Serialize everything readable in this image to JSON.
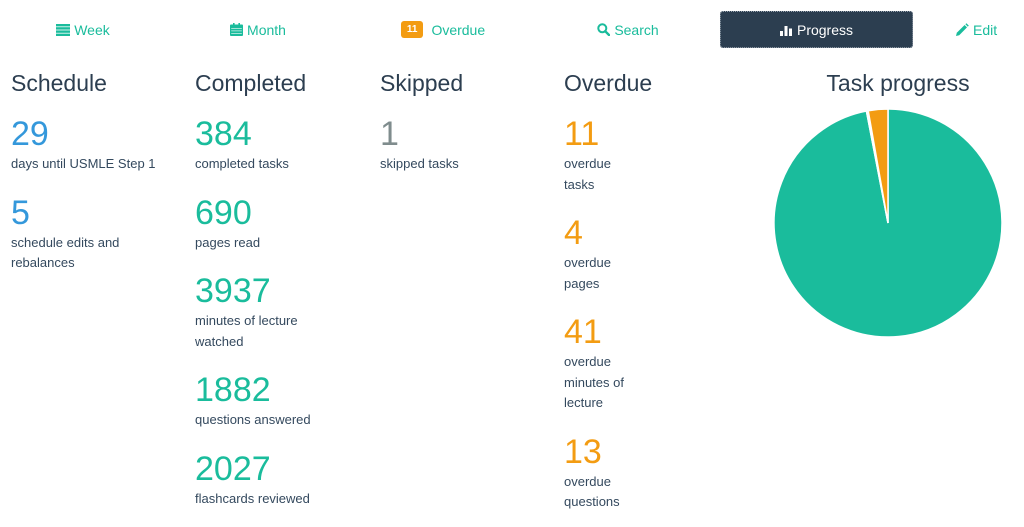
{
  "nav": {
    "week": {
      "label": "Week",
      "icon": "list-icon"
    },
    "month": {
      "label": "Month",
      "icon": "calendar-icon"
    },
    "overdue": {
      "label": "Overdue",
      "badge": "11"
    },
    "search": {
      "label": "Search",
      "icon": "search-icon"
    },
    "progress": {
      "label": "Progress",
      "icon": "bar-chart-icon",
      "active": true
    },
    "edit": {
      "label": "Edit",
      "icon": "pencil-icon"
    }
  },
  "schedule": {
    "title": "Schedule",
    "stats": [
      {
        "value": "29",
        "label": "days until USMLE Step 1"
      },
      {
        "value": "5",
        "label": "schedule edits and rebalances"
      }
    ]
  },
  "completed": {
    "title": "Completed",
    "stats": [
      {
        "value": "384",
        "label": "completed tasks"
      },
      {
        "value": "690",
        "label": "pages read"
      },
      {
        "value": "3937",
        "label": "minutes of lecture watched"
      },
      {
        "value": "1882",
        "label": "questions answered"
      },
      {
        "value": "2027",
        "label": "flashcards reviewed"
      }
    ]
  },
  "skipped": {
    "title": "Skipped",
    "stats": [
      {
        "value": "1",
        "label": "skipped tasks"
      }
    ]
  },
  "overdue": {
    "title": "Overdue",
    "stats": [
      {
        "value": "11",
        "label": "overdue tasks"
      },
      {
        "value": "4",
        "label": "overdue pages"
      },
      {
        "value": "41",
        "label": "overdue minutes of lecture"
      },
      {
        "value": "13",
        "label": "overdue questions"
      }
    ]
  },
  "colors": {
    "accent": "#1abc9c",
    "schedule": "#3498db",
    "skipped": "#7f8c8d",
    "overdue": "#f39c12",
    "active_nav": "#2c3e50"
  },
  "chart_data": {
    "type": "pie",
    "title": "Task progress",
    "categories": [
      "Completed",
      "Skipped",
      "Overdue"
    ],
    "values": [
      384,
      1,
      11
    ],
    "colors": [
      "#1abc9c",
      "#ffffff",
      "#f39c12"
    ],
    "start_angle_deg": 0,
    "direction": "clockwise",
    "legend": "none"
  }
}
